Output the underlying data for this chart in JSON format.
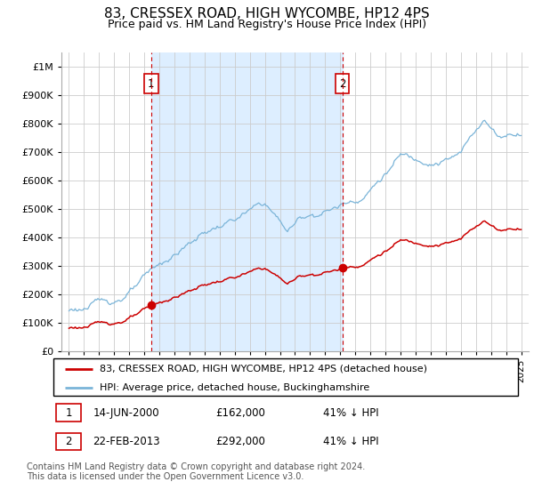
{
  "title": "83, CRESSEX ROAD, HIGH WYCOMBE, HP12 4PS",
  "subtitle": "Price paid vs. HM Land Registry's House Price Index (HPI)",
  "ytick_values": [
    0,
    100000,
    200000,
    300000,
    400000,
    500000,
    600000,
    700000,
    800000,
    900000,
    1000000
  ],
  "ylim": [
    0,
    1050000
  ],
  "xlim_start": 1994.5,
  "xlim_end": 2025.5,
  "sale1_date": 2000.45,
  "sale1_price": 162000,
  "sale2_date": 2013.13,
  "sale2_price": 292000,
  "legend_line1": "83, CRESSEX ROAD, HIGH WYCOMBE, HP12 4PS (detached house)",
  "legend_line2": "HPI: Average price, detached house, Buckinghamshire",
  "footnote": "Contains HM Land Registry data © Crown copyright and database right 2024.\nThis data is licensed under the Open Government Licence v3.0.",
  "hpi_color": "#7ab4d8",
  "price_color": "#cc0000",
  "vline_color": "#cc0000",
  "shade_color": "#ddeeff",
  "background_color": "#ffffff",
  "grid_color": "#cccccc"
}
